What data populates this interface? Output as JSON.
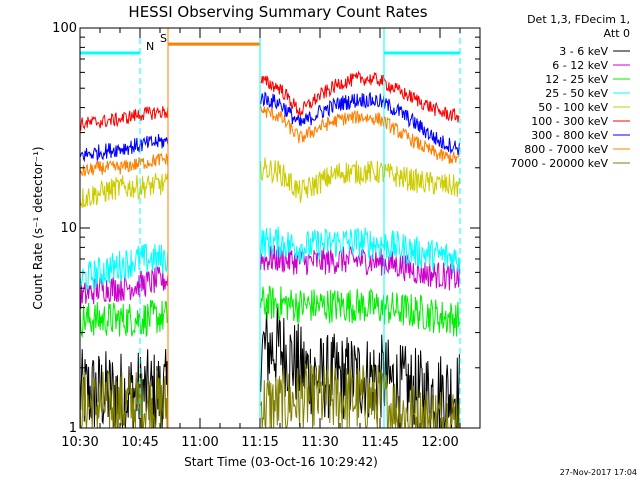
{
  "chart_data": {
    "type": "line",
    "title": "HESSI Observing Summary Count Rates",
    "xlabel": "Start Time (03-Oct-16 10:29:42)",
    "ylabel": "Count Rate (s⁻¹ detector⁻¹)",
    "y_scale": "log",
    "ylim": [
      1,
      100
    ],
    "xlim_minutes": [
      0,
      100
    ],
    "y_ticks": [
      1,
      10,
      100
    ],
    "x_tick_labels": [
      "10:30",
      "10:45",
      "11:00",
      "11:15",
      "11:30",
      "11:45",
      "12:00"
    ],
    "x_tick_minutes": [
      0,
      15,
      30,
      45,
      60,
      75,
      90
    ],
    "data_gaps_minutes": [
      [
        22,
        45
      ]
    ],
    "legend_header": [
      "Det 1,3, FDecim 1,",
      "Att 0"
    ],
    "legend_placement": "right",
    "series": [
      {
        "name": "3 - 6 keV",
        "color": "#000000",
        "x": [
          0,
          5,
          10,
          15,
          20,
          22,
          45,
          50,
          55,
          60,
          65,
          70,
          75,
          80,
          85,
          90,
          95
        ],
        "y": [
          1.5,
          1.5,
          1.5,
          1.5,
          1.5,
          1.5,
          2.5,
          2.5,
          2.0,
          1.8,
          1.8,
          1.8,
          1.8,
          1.6,
          1.5,
          1.5,
          1.5
        ]
      },
      {
        "name": "6 - 12 keV",
        "color": "#cc00cc",
        "x": [
          0,
          5,
          10,
          15,
          20,
          22,
          45,
          50,
          55,
          60,
          65,
          70,
          75,
          80,
          85,
          90,
          95
        ],
        "y": [
          4.5,
          5.0,
          5.0,
          5.2,
          5.5,
          5.5,
          7.0,
          7.0,
          6.8,
          6.8,
          6.9,
          6.9,
          6.8,
          6.5,
          6.0,
          5.8,
          5.6
        ]
      },
      {
        "name": "12 - 25 keV",
        "color": "#00ee00",
        "x": [
          0,
          5,
          10,
          15,
          20,
          22,
          45,
          50,
          55,
          60,
          65,
          70,
          75,
          80,
          85,
          90,
          95
        ],
        "y": [
          3.5,
          3.5,
          3.5,
          3.5,
          3.6,
          3.6,
          4.2,
          4.2,
          4.1,
          4.1,
          4.1,
          4.1,
          4.0,
          3.9,
          3.8,
          3.6,
          3.5
        ]
      },
      {
        "name": "25 - 50 keV",
        "color": "#00ffff",
        "x": [
          0,
          5,
          10,
          15,
          20,
          22,
          45,
          50,
          55,
          60,
          65,
          70,
          75,
          80,
          85,
          90,
          95
        ],
        "y": [
          5.5,
          6.0,
          6.5,
          7.0,
          7.0,
          7.0,
          8.5,
          8.5,
          8.0,
          8.3,
          8.5,
          8.5,
          8.3,
          8.0,
          7.5,
          7.3,
          7.0
        ]
      },
      {
        "name": "50 - 100 keV",
        "color": "#cccc00",
        "x": [
          0,
          5,
          10,
          15,
          20,
          22,
          45,
          50,
          55,
          60,
          65,
          70,
          75,
          80,
          85,
          90,
          95
        ],
        "y": [
          14,
          15,
          16,
          16,
          16.5,
          16.5,
          20,
          19,
          15,
          17,
          19,
          19,
          19,
          18,
          17,
          16.5,
          16
        ]
      },
      {
        "name": "100 - 300 keV",
        "color": "#ff0000",
        "x": [
          0,
          5,
          10,
          15,
          20,
          22,
          45,
          50,
          55,
          60,
          65,
          70,
          75,
          80,
          85,
          90,
          95
        ],
        "y": [
          33,
          34,
          35,
          37,
          38,
          38,
          55,
          50,
          38,
          46,
          53,
          56,
          55,
          48,
          43,
          38,
          36
        ]
      },
      {
        "name": "300 - 800 keV",
        "color": "#0000ff",
        "x": [
          0,
          5,
          10,
          15,
          20,
          22,
          45,
          50,
          55,
          60,
          65,
          70,
          75,
          80,
          85,
          90,
          95
        ],
        "y": [
          23,
          24,
          25,
          26,
          27,
          27,
          45,
          42,
          33,
          38,
          42,
          44,
          43,
          38,
          32,
          27,
          25
        ]
      },
      {
        "name": "800 - 7000 keV",
        "color": "#ff7f00",
        "x": [
          0,
          5,
          10,
          15,
          20,
          22,
          45,
          50,
          55,
          60,
          65,
          70,
          75,
          80,
          85,
          90,
          95
        ],
        "y": [
          19,
          20,
          20,
          21,
          22,
          22,
          39,
          36,
          28,
          32,
          35,
          36,
          35,
          30,
          26,
          23,
          22
        ]
      },
      {
        "name": "7000 - 20000 keV",
        "color": "#7f7f00",
        "x": [
          0,
          5,
          10,
          15,
          20,
          22,
          45,
          50,
          55,
          60,
          65,
          70,
          75,
          80,
          85,
          90,
          95
        ],
        "y": [
          1.3,
          1.3,
          1.3,
          1.3,
          1.3,
          1.3,
          1.3,
          1.3,
          1.4,
          1.4,
          1.4,
          1.4,
          1.4,
          1.2,
          1.1,
          1.1,
          1.1
        ]
      }
    ],
    "flag_bars": [
      {
        "label": "N",
        "color": "#00ffff",
        "y_value": 75,
        "x_ranges": [
          [
            0,
            15
          ],
          [
            76,
            95
          ]
        ],
        "boundary_minutes": [
          15,
          95
        ]
      },
      {
        "label": "S",
        "color": "#ff7f00",
        "y_value": 83,
        "x_ranges": [
          [
            22,
            45
          ]
        ],
        "boundary_minutes": [
          22,
          45
        ]
      }
    ],
    "vertical_markers": [
      {
        "minute": 0,
        "color": "#00ffff"
      },
      {
        "minute": 45,
        "color": "#00ffff"
      },
      {
        "minute": 76,
        "color": "#00ffff"
      }
    ],
    "footer": "27-Nov-2017 17:04"
  }
}
